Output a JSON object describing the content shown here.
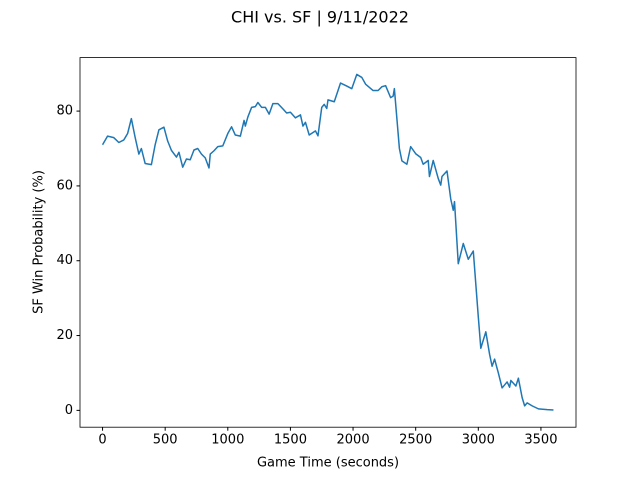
{
  "chart_data": {
    "type": "line",
    "title": "CHI vs. SF | 9/11/2022",
    "x_label": "Game Time (seconds)",
    "y_label": "SF Win Probability (%)",
    "x": [
      0,
      40,
      90,
      130,
      170,
      200,
      230,
      260,
      290,
      310,
      340,
      390,
      420,
      450,
      490,
      520,
      550,
      590,
      610,
      640,
      670,
      700,
      730,
      760,
      790,
      820,
      850,
      860,
      890,
      920,
      960,
      1000,
      1030,
      1060,
      1100,
      1130,
      1140,
      1160,
      1190,
      1220,
      1240,
      1270,
      1300,
      1330,
      1360,
      1400,
      1440,
      1470,
      1500,
      1540,
      1580,
      1600,
      1620,
      1650,
      1700,
      1720,
      1750,
      1770,
      1790,
      1800,
      1850,
      1900,
      1950,
      1990,
      2030,
      2070,
      2100,
      2160,
      2200,
      2230,
      2260,
      2300,
      2320,
      2330,
      2370,
      2390,
      2430,
      2460,
      2500,
      2540,
      2560,
      2600,
      2610,
      2640,
      2680,
      2700,
      2710,
      2750,
      2780,
      2800,
      2810,
      2840,
      2880,
      2920,
      2960,
      3000,
      3020,
      3060,
      3090,
      3110,
      3130,
      3160,
      3190,
      3230,
      3250,
      3260,
      3300,
      3320,
      3350,
      3370,
      3390,
      3430,
      3480,
      3550,
      3600
    ],
    "series": [
      {
        "name": "SF",
        "color": "#1f77b4",
        "values": [
          71,
          73.3,
          72.9,
          71.6,
          72.3,
          74,
          78,
          73,
          68.5,
          70,
          66,
          65.7,
          71,
          75,
          75.7,
          72,
          69.5,
          67.7,
          69,
          65,
          67.2,
          67,
          69.6,
          70,
          68.5,
          67.5,
          64.8,
          68.5,
          69.4,
          70.5,
          70.7,
          74,
          75.8,
          73.6,
          73.3,
          77.5,
          76,
          78.4,
          81,
          81.2,
          82.3,
          81,
          81,
          79.2,
          82,
          82,
          80.6,
          79.5,
          79.7,
          78.2,
          79,
          76,
          77,
          73.6,
          74.7,
          73.4,
          81,
          81.8,
          80.7,
          83,
          82.5,
          87.5,
          86.7,
          86,
          89.8,
          89,
          87.2,
          85.5,
          85.5,
          86.5,
          86.8,
          83.6,
          84,
          86,
          70,
          66.7,
          65.8,
          70.5,
          68.6,
          67.6,
          65.8,
          66.8,
          62.5,
          66.8,
          62,
          60.2,
          62.5,
          64,
          56.5,
          53.5,
          55.8,
          39.2,
          44.6,
          40.4,
          42.6,
          25,
          16.6,
          21,
          15,
          11.8,
          13.7,
          10,
          6,
          7.6,
          6.2,
          8,
          6.5,
          8.6,
          3.4,
          1.2,
          2,
          1.2,
          0.4,
          0.2,
          0.1
        ]
      }
    ],
    "xlim": [
      -180,
      3780
    ],
    "xticks": [
      0,
      500,
      1000,
      1500,
      2000,
      2500,
      3000,
      3500
    ],
    "ylim": [
      -4.5,
      94.3
    ],
    "yticks": [
      0,
      20,
      40,
      60,
      80
    ],
    "grid": false
  }
}
